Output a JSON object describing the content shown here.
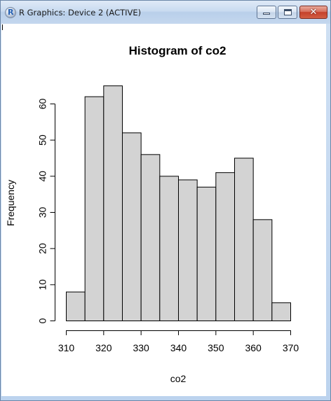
{
  "window": {
    "title": "R Graphics: Device 2 (ACTIVE)",
    "app_icon_letter": "R",
    "close_glyph": "✕"
  },
  "icons": {
    "app": "r-logo-icon",
    "minimize": "minimize-icon",
    "maximize": "maximize-icon",
    "close": "close-icon"
  },
  "chart_data": {
    "type": "bar",
    "title": "Histogram of co2",
    "xlabel": "co2",
    "ylabel": "Frequency",
    "bins": [
      {
        "from": 310,
        "to": 315,
        "count": 8
      },
      {
        "from": 315,
        "to": 320,
        "count": 62
      },
      {
        "from": 320,
        "to": 325,
        "count": 65
      },
      {
        "from": 325,
        "to": 330,
        "count": 52
      },
      {
        "from": 330,
        "to": 335,
        "count": 46
      },
      {
        "from": 335,
        "to": 340,
        "count": 40
      },
      {
        "from": 340,
        "to": 345,
        "count": 39
      },
      {
        "from": 345,
        "to": 350,
        "count": 37
      },
      {
        "from": 350,
        "to": 355,
        "count": 41
      },
      {
        "from": 355,
        "to": 360,
        "count": 45
      },
      {
        "from": 360,
        "to": 365,
        "count": 28
      },
      {
        "from": 365,
        "to": 370,
        "count": 5
      }
    ],
    "xlim": [
      310,
      370
    ],
    "ylim": [
      0,
      60
    ],
    "xticks": [
      310,
      320,
      330,
      340,
      350,
      360,
      370
    ],
    "yticks": [
      0,
      10,
      20,
      30,
      40,
      50,
      60
    ],
    "bar_fill": "#d3d3d3",
    "bar_stroke": "#000000",
    "grid": false,
    "legend": "none"
  }
}
